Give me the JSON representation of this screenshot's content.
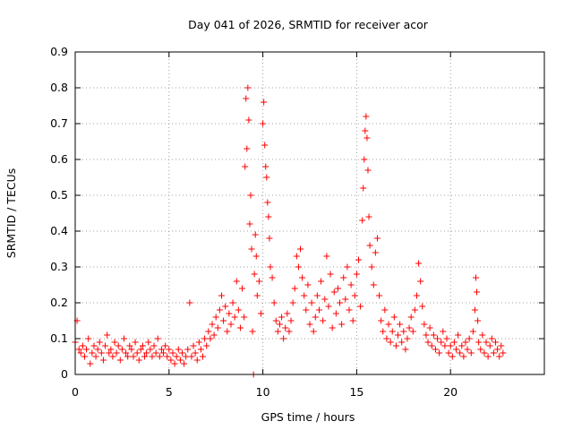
{
  "chart_data": {
    "type": "scatter",
    "title": "Day 041 of 2026, SRMTID for receiver acor",
    "xlabel": "GPS time / hours",
    "ylabel": "SRMTID / TECUs",
    "xlim": [
      0,
      25
    ],
    "ylim": [
      0,
      0.9
    ],
    "x_ticks": [
      {
        "value": 0,
        "label": "0"
      },
      {
        "value": 5,
        "label": "5"
      },
      {
        "value": 10,
        "label": "10"
      },
      {
        "value": 15,
        "label": "15"
      },
      {
        "value": 20,
        "label": "20"
      }
    ],
    "y_ticks": [
      {
        "value": 0,
        "label": "0"
      },
      {
        "value": 0.1,
        "label": "0.1"
      },
      {
        "value": 0.2,
        "label": "0.2"
      },
      {
        "value": 0.3,
        "label": "0.3"
      },
      {
        "value": 0.4,
        "label": "0.4"
      },
      {
        "value": 0.5,
        "label": "0.5"
      },
      {
        "value": 0.6,
        "label": "0.6"
      },
      {
        "value": 0.7,
        "label": "0.7"
      },
      {
        "value": 0.8,
        "label": "0.8"
      },
      {
        "value": 0.9,
        "label": "0.9"
      }
    ],
    "grid": true,
    "marker": "plus",
    "series": [
      {
        "name": "SRMTID",
        "color": "#ff0000",
        "points": [
          [
            0.0,
            0.09
          ],
          [
            0.1,
            0.15
          ],
          [
            0.2,
            0.07
          ],
          [
            0.3,
            0.06
          ],
          [
            0.4,
            0.08
          ],
          [
            0.5,
            0.05
          ],
          [
            0.6,
            0.07
          ],
          [
            0.7,
            0.1
          ],
          [
            0.8,
            0.03
          ],
          [
            0.9,
            0.06
          ],
          [
            1.0,
            0.08
          ],
          [
            1.1,
            0.05
          ],
          [
            1.2,
            0.07
          ],
          [
            1.3,
            0.09
          ],
          [
            1.4,
            0.06
          ],
          [
            1.5,
            0.04
          ],
          [
            1.6,
            0.08
          ],
          [
            1.7,
            0.11
          ],
          [
            1.8,
            0.06
          ],
          [
            1.9,
            0.07
          ],
          [
            2.0,
            0.05
          ],
          [
            2.1,
            0.09
          ],
          [
            2.2,
            0.06
          ],
          [
            2.3,
            0.08
          ],
          [
            2.4,
            0.04
          ],
          [
            2.5,
            0.07
          ],
          [
            2.6,
            0.1
          ],
          [
            2.7,
            0.06
          ],
          [
            2.8,
            0.05
          ],
          [
            2.9,
            0.08
          ],
          [
            3.0,
            0.07
          ],
          [
            3.1,
            0.05
          ],
          [
            3.2,
            0.09
          ],
          [
            3.3,
            0.06
          ],
          [
            3.4,
            0.04
          ],
          [
            3.5,
            0.07
          ],
          [
            3.6,
            0.08
          ],
          [
            3.7,
            0.05
          ],
          [
            3.8,
            0.06
          ],
          [
            3.9,
            0.09
          ],
          [
            4.0,
            0.07
          ],
          [
            4.1,
            0.05
          ],
          [
            4.2,
            0.08
          ],
          [
            4.3,
            0.06
          ],
          [
            4.4,
            0.1
          ],
          [
            4.5,
            0.05
          ],
          [
            4.6,
            0.07
          ],
          [
            4.7,
            0.06
          ],
          [
            4.8,
            0.08
          ],
          [
            4.9,
            0.05
          ],
          [
            5.0,
            0.07
          ],
          [
            5.1,
            0.04
          ],
          [
            5.2,
            0.06
          ],
          [
            5.3,
            0.03
          ],
          [
            5.4,
            0.05
          ],
          [
            5.5,
            0.07
          ],
          [
            5.6,
            0.04
          ],
          [
            5.7,
            0.06
          ],
          [
            5.8,
            0.03
          ],
          [
            5.9,
            0.05
          ],
          [
            6.0,
            0.07
          ],
          [
            6.1,
            0.2
          ],
          [
            6.2,
            0.05
          ],
          [
            6.3,
            0.08
          ],
          [
            6.4,
            0.06
          ],
          [
            6.5,
            0.04
          ],
          [
            6.6,
            0.09
          ],
          [
            6.7,
            0.07
          ],
          [
            6.8,
            0.05
          ],
          [
            6.9,
            0.1
          ],
          [
            7.0,
            0.08
          ],
          [
            7.1,
            0.12
          ],
          [
            7.2,
            0.1
          ],
          [
            7.3,
            0.14
          ],
          [
            7.4,
            0.11
          ],
          [
            7.5,
            0.16
          ],
          [
            7.6,
            0.13
          ],
          [
            7.7,
            0.18
          ],
          [
            7.8,
            0.22
          ],
          [
            7.9,
            0.15
          ],
          [
            8.0,
            0.19
          ],
          [
            8.1,
            0.12
          ],
          [
            8.2,
            0.17
          ],
          [
            8.3,
            0.14
          ],
          [
            8.4,
            0.2
          ],
          [
            8.5,
            0.16
          ],
          [
            8.6,
            0.26
          ],
          [
            8.7,
            0.18
          ],
          [
            8.8,
            0.13
          ],
          [
            8.9,
            0.24
          ],
          [
            9.0,
            0.16
          ],
          [
            9.05,
            0.58
          ],
          [
            9.1,
            0.77
          ],
          [
            9.15,
            0.63
          ],
          [
            9.2,
            0.8
          ],
          [
            9.25,
            0.71
          ],
          [
            9.3,
            0.42
          ],
          [
            9.35,
            0.5
          ],
          [
            9.4,
            0.35
          ],
          [
            9.45,
            0.12
          ],
          [
            9.5,
            0.0
          ],
          [
            9.55,
            0.28
          ],
          [
            9.6,
            0.39
          ],
          [
            9.65,
            0.33
          ],
          [
            9.7,
            0.22
          ],
          [
            9.8,
            0.26
          ],
          [
            9.9,
            0.17
          ],
          [
            10.0,
            0.7
          ],
          [
            10.05,
            0.76
          ],
          [
            10.1,
            0.64
          ],
          [
            10.15,
            0.58
          ],
          [
            10.2,
            0.55
          ],
          [
            10.25,
            0.48
          ],
          [
            10.3,
            0.44
          ],
          [
            10.35,
            0.38
          ],
          [
            10.4,
            0.3
          ],
          [
            10.5,
            0.27
          ],
          [
            10.6,
            0.2
          ],
          [
            10.7,
            0.15
          ],
          [
            10.8,
            0.12
          ],
          [
            10.9,
            0.14
          ],
          [
            11.0,
            0.16
          ],
          [
            11.1,
            0.1
          ],
          [
            11.2,
            0.13
          ],
          [
            11.3,
            0.17
          ],
          [
            11.4,
            0.12
          ],
          [
            11.5,
            0.15
          ],
          [
            11.6,
            0.2
          ],
          [
            11.7,
            0.24
          ],
          [
            11.8,
            0.33
          ],
          [
            11.9,
            0.3
          ],
          [
            12.0,
            0.35
          ],
          [
            12.1,
            0.27
          ],
          [
            12.2,
            0.22
          ],
          [
            12.3,
            0.18
          ],
          [
            12.4,
            0.25
          ],
          [
            12.5,
            0.14
          ],
          [
            12.6,
            0.2
          ],
          [
            12.7,
            0.12
          ],
          [
            12.8,
            0.16
          ],
          [
            12.9,
            0.22
          ],
          [
            13.0,
            0.18
          ],
          [
            13.1,
            0.26
          ],
          [
            13.2,
            0.15
          ],
          [
            13.3,
            0.21
          ],
          [
            13.4,
            0.33
          ],
          [
            13.5,
            0.19
          ],
          [
            13.6,
            0.28
          ],
          [
            13.7,
            0.13
          ],
          [
            13.8,
            0.23
          ],
          [
            13.9,
            0.17
          ],
          [
            14.0,
            0.24
          ],
          [
            14.1,
            0.2
          ],
          [
            14.2,
            0.14
          ],
          [
            14.3,
            0.27
          ],
          [
            14.4,
            0.21
          ],
          [
            14.5,
            0.3
          ],
          [
            14.6,
            0.18
          ],
          [
            14.7,
            0.25
          ],
          [
            14.8,
            0.15
          ],
          [
            14.9,
            0.22
          ],
          [
            15.0,
            0.28
          ],
          [
            15.1,
            0.32
          ],
          [
            15.2,
            0.19
          ],
          [
            15.3,
            0.43
          ],
          [
            15.35,
            0.52
          ],
          [
            15.4,
            0.6
          ],
          [
            15.45,
            0.68
          ],
          [
            15.5,
            0.72
          ],
          [
            15.55,
            0.66
          ],
          [
            15.6,
            0.57
          ],
          [
            15.65,
            0.44
          ],
          [
            15.7,
            0.36
          ],
          [
            15.8,
            0.3
          ],
          [
            15.9,
            0.25
          ],
          [
            16.0,
            0.34
          ],
          [
            16.1,
            0.38
          ],
          [
            16.2,
            0.22
          ],
          [
            16.3,
            0.15
          ],
          [
            16.4,
            0.12
          ],
          [
            16.5,
            0.18
          ],
          [
            16.6,
            0.1
          ],
          [
            16.7,
            0.14
          ],
          [
            16.8,
            0.09
          ],
          [
            16.9,
            0.12
          ],
          [
            17.0,
            0.16
          ],
          [
            17.1,
            0.08
          ],
          [
            17.2,
            0.11
          ],
          [
            17.3,
            0.14
          ],
          [
            17.4,
            0.09
          ],
          [
            17.5,
            0.12
          ],
          [
            17.6,
            0.07
          ],
          [
            17.7,
            0.1
          ],
          [
            17.8,
            0.13
          ],
          [
            17.9,
            0.16
          ],
          [
            18.0,
            0.12
          ],
          [
            18.1,
            0.18
          ],
          [
            18.2,
            0.22
          ],
          [
            18.3,
            0.31
          ],
          [
            18.4,
            0.26
          ],
          [
            18.5,
            0.19
          ],
          [
            18.6,
            0.14
          ],
          [
            18.7,
            0.11
          ],
          [
            18.8,
            0.09
          ],
          [
            18.9,
            0.13
          ],
          [
            19.0,
            0.08
          ],
          [
            19.1,
            0.11
          ],
          [
            19.2,
            0.07
          ],
          [
            19.3,
            0.1
          ],
          [
            19.4,
            0.06
          ],
          [
            19.5,
            0.09
          ],
          [
            19.6,
            0.12
          ],
          [
            19.7,
            0.08
          ],
          [
            19.8,
            0.1
          ],
          [
            19.9,
            0.06
          ],
          [
            20.0,
            0.08
          ],
          [
            20.1,
            0.05
          ],
          [
            20.2,
            0.09
          ],
          [
            20.3,
            0.07
          ],
          [
            20.4,
            0.11
          ],
          [
            20.5,
            0.06
          ],
          [
            20.6,
            0.08
          ],
          [
            20.7,
            0.05
          ],
          [
            20.8,
            0.09
          ],
          [
            20.9,
            0.07
          ],
          [
            21.0,
            0.1
          ],
          [
            21.1,
            0.06
          ],
          [
            21.2,
            0.12
          ],
          [
            21.3,
            0.18
          ],
          [
            21.35,
            0.27
          ],
          [
            21.4,
            0.23
          ],
          [
            21.45,
            0.15
          ],
          [
            21.5,
            0.09
          ],
          [
            21.6,
            0.07
          ],
          [
            21.7,
            0.11
          ],
          [
            21.8,
            0.06
          ],
          [
            21.9,
            0.09
          ],
          [
            22.0,
            0.05
          ],
          [
            22.1,
            0.08
          ],
          [
            22.2,
            0.1
          ],
          [
            22.3,
            0.06
          ],
          [
            22.4,
            0.09
          ],
          [
            22.5,
            0.07
          ],
          [
            22.6,
            0.05
          ],
          [
            22.7,
            0.08
          ],
          [
            22.8,
            0.06
          ]
        ]
      }
    ]
  }
}
